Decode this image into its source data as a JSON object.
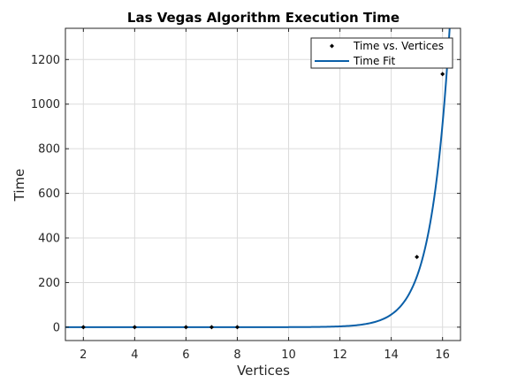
{
  "chart_data": {
    "type": "line",
    "title": "Las Vegas Algorithm Execution Time",
    "xlabel": "Vertices",
    "ylabel": "Time",
    "xlim": [
      1.3,
      16.7
    ],
    "ylim": [
      -60,
      1340
    ],
    "xticks": [
      2,
      4,
      6,
      8,
      10,
      12,
      14,
      16
    ],
    "yticks": [
      0,
      200,
      400,
      600,
      800,
      1000,
      1200
    ],
    "grid": true,
    "legend_position": "top-right",
    "series": [
      {
        "name": "Time vs. Vertices",
        "style": "markers",
        "color": "#000000",
        "x": [
          2,
          4,
          6,
          7,
          8,
          15,
          16
        ],
        "y": [
          0,
          0,
          0,
          0,
          0,
          315,
          1135
        ]
      },
      {
        "name": "Time Fit",
        "style": "line",
        "color": "#0a5fa8",
        "model": "exponential",
        "a": 2e-07,
        "b": 1.39
      }
    ]
  }
}
